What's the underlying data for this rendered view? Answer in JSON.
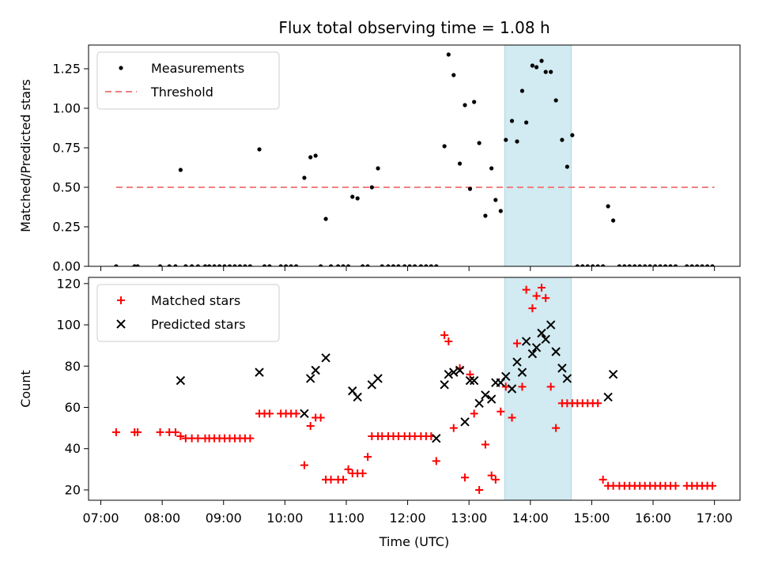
{
  "chart_data": [
    {
      "type": "scatter",
      "title": "Flux total observing time = 1.08 h",
      "xlabel": "",
      "ylabel": "Matched/Predicted stars",
      "xlim": [
        "06:48",
        "17:25"
      ],
      "ylim": [
        0,
        1.4
      ],
      "yticks": [
        "0.00",
        "0.25",
        "0.50",
        "0.75",
        "1.00",
        "1.25"
      ],
      "xticks": [
        "07:00",
        "08:00",
        "09:00",
        "10:00",
        "11:00",
        "12:00",
        "13:00",
        "14:00",
        "15:00",
        "16:00",
        "17:00"
      ],
      "show_xtick_labels": false,
      "highlight_span": [
        "13:35",
        "14:40"
      ],
      "highlight_color": "#add8e6",
      "legend": {
        "position": "upper-left",
        "entries": [
          "Measurements",
          "Threshold"
        ]
      },
      "threshold": {
        "name": "Threshold",
        "y": 0.5,
        "x": [
          "07:15",
          "17:00"
        ],
        "color": "#f08080",
        "style": "dashed"
      },
      "series": [
        {
          "name": "Measurements",
          "marker": "dot",
          "color": "#000000",
          "points": [
            [
              "07:15",
              0.0
            ],
            [
              "07:33",
              0.0
            ],
            [
              "07:36",
              0.0
            ],
            [
              "07:58",
              0.0
            ],
            [
              "08:07",
              0.0
            ],
            [
              "08:13",
              0.0
            ],
            [
              "08:18",
              0.61
            ],
            [
              "08:23",
              0.0
            ],
            [
              "08:29",
              0.0
            ],
            [
              "08:35",
              0.0
            ],
            [
              "08:42",
              0.0
            ],
            [
              "08:46",
              0.0
            ],
            [
              "08:51",
              0.0
            ],
            [
              "08:56",
              0.0
            ],
            [
              "09:01",
              0.0
            ],
            [
              "09:06",
              0.0
            ],
            [
              "09:11",
              0.0
            ],
            [
              "09:16",
              0.0
            ],
            [
              "09:21",
              0.0
            ],
            [
              "09:26",
              0.0
            ],
            [
              "09:35",
              0.74
            ],
            [
              "09:40",
              0.0
            ],
            [
              "09:45",
              0.0
            ],
            [
              "09:56",
              0.0
            ],
            [
              "10:01",
              0.0
            ],
            [
              "10:06",
              0.0
            ],
            [
              "10:11",
              0.0
            ],
            [
              "10:19",
              0.56
            ],
            [
              "10:25",
              0.69
            ],
            [
              "10:30",
              0.7
            ],
            [
              "10:35",
              0.0
            ],
            [
              "10:40",
              0.3
            ],
            [
              "10:45",
              0.0
            ],
            [
              "10:52",
              0.0
            ],
            [
              "10:57",
              0.0
            ],
            [
              "11:02",
              0.0
            ],
            [
              "11:06",
              0.44
            ],
            [
              "11:11",
              0.43
            ],
            [
              "11:16",
              0.0
            ],
            [
              "11:21",
              0.0
            ],
            [
              "11:25",
              0.5
            ],
            [
              "11:31",
              0.62
            ],
            [
              "11:35",
              0.0
            ],
            [
              "11:41",
              0.0
            ],
            [
              "11:46",
              0.0
            ],
            [
              "11:51",
              0.0
            ],
            [
              "11:57",
              0.0
            ],
            [
              "12:02",
              0.0
            ],
            [
              "12:07",
              0.0
            ],
            [
              "12:13",
              0.0
            ],
            [
              "12:18",
              0.0
            ],
            [
              "12:23",
              0.0
            ],
            [
              "12:28",
              0.0
            ],
            [
              "12:36",
              0.76
            ],
            [
              "12:40",
              1.34
            ],
            [
              "12:45",
              1.21
            ],
            [
              "12:51",
              0.65
            ],
            [
              "12:56",
              1.02
            ],
            [
              "13:01",
              0.49
            ],
            [
              "13:05",
              1.04
            ],
            [
              "13:10",
              0.78
            ],
            [
              "13:16",
              0.32
            ],
            [
              "13:22",
              0.62
            ],
            [
              "13:26",
              0.42
            ],
            [
              "13:31",
              0.35
            ],
            [
              "13:36",
              0.8
            ],
            [
              "13:42",
              0.92
            ],
            [
              "13:47",
              0.79
            ],
            [
              "13:52",
              1.11
            ],
            [
              "13:56",
              0.91
            ],
            [
              "14:02",
              1.27
            ],
            [
              "14:06",
              1.26
            ],
            [
              "14:11",
              1.3
            ],
            [
              "14:15",
              1.23
            ],
            [
              "14:20",
              1.23
            ],
            [
              "14:25",
              1.05
            ],
            [
              "14:31",
              0.8
            ],
            [
              "14:36",
              0.63
            ],
            [
              "14:41",
              0.83
            ],
            [
              "14:46",
              0.0
            ],
            [
              "14:51",
              0.0
            ],
            [
              "14:56",
              0.0
            ],
            [
              "15:01",
              0.0
            ],
            [
              "15:06",
              0.0
            ],
            [
              "15:11",
              0.0
            ],
            [
              "15:16",
              0.38
            ],
            [
              "15:21",
              0.29
            ],
            [
              "15:27",
              0.0
            ],
            [
              "15:32",
              0.0
            ],
            [
              "15:37",
              0.0
            ],
            [
              "15:42",
              0.0
            ],
            [
              "15:47",
              0.0
            ],
            [
              "15:52",
              0.0
            ],
            [
              "15:57",
              0.0
            ],
            [
              "16:02",
              0.0
            ],
            [
              "16:07",
              0.0
            ],
            [
              "16:12",
              0.0
            ],
            [
              "16:17",
              0.0
            ],
            [
              "16:22",
              0.0
            ],
            [
              "16:33",
              0.0
            ],
            [
              "16:38",
              0.0
            ],
            [
              "16:43",
              0.0
            ],
            [
              "16:48",
              0.0
            ],
            [
              "16:53",
              0.0
            ],
            [
              "16:58",
              0.0
            ]
          ]
        }
      ]
    },
    {
      "type": "scatter",
      "title": "",
      "xlabel": "Time (UTC)",
      "ylabel": "Count",
      "xlim": [
        "06:48",
        "17:25"
      ],
      "ylim": [
        15,
        123
      ],
      "yticks": [
        "20",
        "40",
        "60",
        "80",
        "100",
        "120"
      ],
      "xticks": [
        "07:00",
        "08:00",
        "09:00",
        "10:00",
        "11:00",
        "12:00",
        "13:00",
        "14:00",
        "15:00",
        "16:00",
        "17:00"
      ],
      "show_xtick_labels": true,
      "highlight_span": [
        "13:35",
        "14:40"
      ],
      "highlight_color": "#add8e6",
      "legend": {
        "position": "upper-left",
        "entries": [
          "Matched stars",
          "Predicted stars"
        ]
      },
      "series": [
        {
          "name": "Matched stars",
          "marker": "plus",
          "color": "#ff0000",
          "points": [
            [
              "07:15",
              48
            ],
            [
              "07:33",
              48
            ],
            [
              "07:36",
              48
            ],
            [
              "07:58",
              48
            ],
            [
              "08:07",
              48
            ],
            [
              "08:13",
              48
            ],
            [
              "08:18",
              46
            ],
            [
              "08:23",
              45
            ],
            [
              "08:29",
              45
            ],
            [
              "08:35",
              45
            ],
            [
              "08:42",
              45
            ],
            [
              "08:46",
              45
            ],
            [
              "08:51",
              45
            ],
            [
              "08:56",
              45
            ],
            [
              "09:01",
              45
            ],
            [
              "09:06",
              45
            ],
            [
              "09:11",
              45
            ],
            [
              "09:16",
              45
            ],
            [
              "09:21",
              45
            ],
            [
              "09:26",
              45
            ],
            [
              "09:35",
              57
            ],
            [
              "09:40",
              57
            ],
            [
              "09:45",
              57
            ],
            [
              "09:56",
              57
            ],
            [
              "10:01",
              57
            ],
            [
              "10:06",
              57
            ],
            [
              "10:11",
              57
            ],
            [
              "10:19",
              32
            ],
            [
              "10:25",
              51
            ],
            [
              "10:30",
              55
            ],
            [
              "10:35",
              55
            ],
            [
              "10:40",
              25
            ],
            [
              "10:45",
              25
            ],
            [
              "10:52",
              25
            ],
            [
              "10:57",
              25
            ],
            [
              "11:02",
              30
            ],
            [
              "11:06",
              28
            ],
            [
              "11:11",
              28
            ],
            [
              "11:16",
              28
            ],
            [
              "11:21",
              36
            ],
            [
              "11:25",
              46
            ],
            [
              "11:31",
              46
            ],
            [
              "11:35",
              46
            ],
            [
              "11:41",
              46
            ],
            [
              "11:46",
              46
            ],
            [
              "11:51",
              46
            ],
            [
              "11:57",
              46
            ],
            [
              "12:02",
              46
            ],
            [
              "12:07",
              46
            ],
            [
              "12:13",
              46
            ],
            [
              "12:18",
              46
            ],
            [
              "12:23",
              46
            ],
            [
              "12:28",
              34
            ],
            [
              "12:36",
              95
            ],
            [
              "12:40",
              92
            ],
            [
              "12:45",
              50
            ],
            [
              "12:51",
              79
            ],
            [
              "12:56",
              26
            ],
            [
              "13:01",
              76
            ],
            [
              "13:05",
              57
            ],
            [
              "13:10",
              20
            ],
            [
              "13:16",
              42
            ],
            [
              "13:22",
              27
            ],
            [
              "13:26",
              25
            ],
            [
              "13:31",
              58
            ],
            [
              "13:36",
              70
            ],
            [
              "13:42",
              55
            ],
            [
              "13:47",
              91
            ],
            [
              "13:52",
              70
            ],
            [
              "13:56",
              117
            ],
            [
              "14:02",
              108
            ],
            [
              "14:06",
              114
            ],
            [
              "14:11",
              118
            ],
            [
              "14:15",
              113
            ],
            [
              "14:20",
              70
            ],
            [
              "14:25",
              50
            ],
            [
              "14:31",
              62
            ],
            [
              "14:36",
              62
            ],
            [
              "14:41",
              62
            ],
            [
              "14:46",
              62
            ],
            [
              "14:51",
              62
            ],
            [
              "14:56",
              62
            ],
            [
              "15:01",
              62
            ],
            [
              "15:06",
              62
            ],
            [
              "15:11",
              25
            ],
            [
              "15:16",
              22
            ],
            [
              "15:21",
              22
            ],
            [
              "15:27",
              22
            ],
            [
              "15:32",
              22
            ],
            [
              "15:37",
              22
            ],
            [
              "15:42",
              22
            ],
            [
              "15:47",
              22
            ],
            [
              "15:52",
              22
            ],
            [
              "15:57",
              22
            ],
            [
              "16:02",
              22
            ],
            [
              "16:07",
              22
            ],
            [
              "16:12",
              22
            ],
            [
              "16:17",
              22
            ],
            [
              "16:22",
              22
            ],
            [
              "16:33",
              22
            ],
            [
              "16:38",
              22
            ],
            [
              "16:43",
              22
            ],
            [
              "16:48",
              22
            ],
            [
              "16:53",
              22
            ],
            [
              "16:58",
              22
            ]
          ]
        },
        {
          "name": "Predicted stars",
          "marker": "x",
          "color": "#000000",
          "points": [
            [
              "08:18",
              73
            ],
            [
              "09:35",
              77
            ],
            [
              "10:19",
              57
            ],
            [
              "10:25",
              74
            ],
            [
              "10:30",
              78
            ],
            [
              "10:40",
              84
            ],
            [
              "11:06",
              68
            ],
            [
              "11:11",
              65
            ],
            [
              "11:25",
              71
            ],
            [
              "11:31",
              74
            ],
            [
              "12:28",
              45
            ],
            [
              "12:36",
              71
            ],
            [
              "12:40",
              76
            ],
            [
              "12:45",
              77
            ],
            [
              "12:51",
              78
            ],
            [
              "12:56",
              53
            ],
            [
              "13:01",
              73
            ],
            [
              "13:05",
              73
            ],
            [
              "13:10",
              62
            ],
            [
              "13:16",
              66
            ],
            [
              "13:22",
              64
            ],
            [
              "13:26",
              72
            ],
            [
              "13:31",
              72
            ],
            [
              "13:36",
              75
            ],
            [
              "13:42",
              69
            ],
            [
              "13:47",
              82
            ],
            [
              "13:52",
              77
            ],
            [
              "13:56",
              92
            ],
            [
              "14:02",
              86
            ],
            [
              "14:06",
              89
            ],
            [
              "14:11",
              96
            ],
            [
              "14:15",
              93
            ],
            [
              "14:20",
              100
            ],
            [
              "14:25",
              87
            ],
            [
              "14:31",
              79
            ],
            [
              "14:36",
              74
            ],
            [
              "15:16",
              65
            ],
            [
              "15:21",
              76
            ]
          ]
        }
      ]
    }
  ]
}
